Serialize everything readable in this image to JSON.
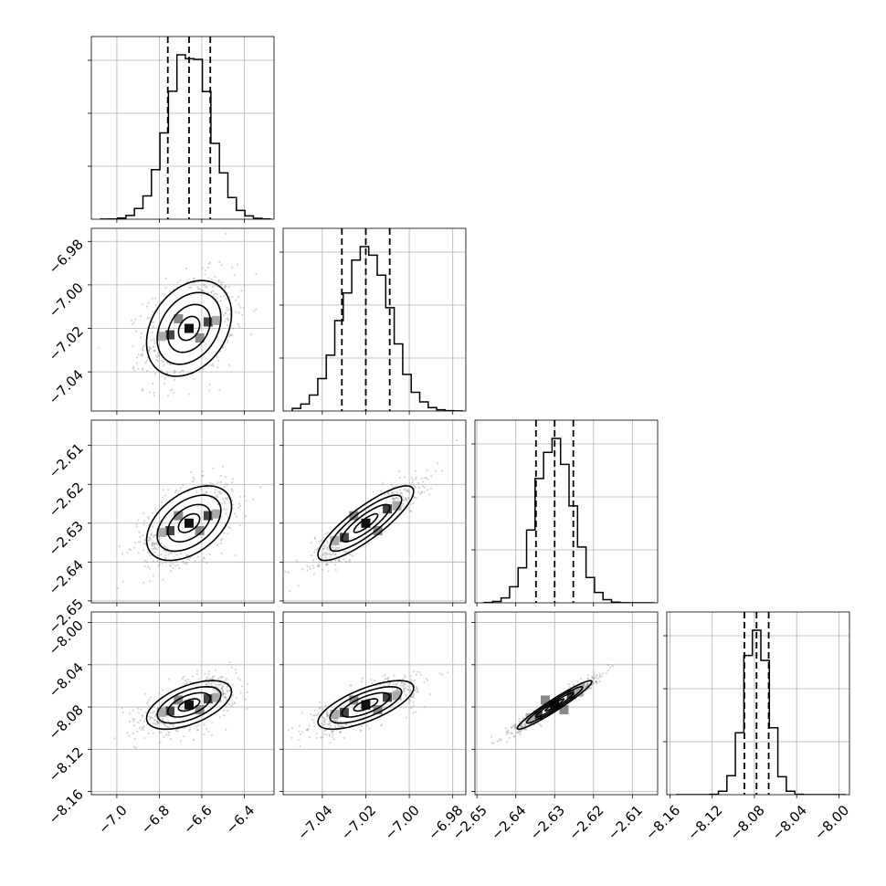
{
  "chart_data": {
    "type": "corner",
    "grid": true,
    "params": [
      {
        "mean": -6.66,
        "sd": 0.1,
        "q16": -6.76,
        "q50": -6.66,
        "q84": -6.56,
        "range": [
          -7.12,
          -6.26
        ],
        "ticks": [
          -7.0,
          -6.8,
          -6.6,
          -6.4
        ],
        "tick_labels": [
          "−7.0",
          "−6.8",
          "−6.6",
          "−6.4"
        ]
      },
      {
        "mean": -7.02,
        "sd": 0.011,
        "q16": -7.031,
        "q50": -7.02,
        "q84": -7.009,
        "range": [
          -7.058,
          -6.974
        ],
        "ticks": [
          -7.04,
          -7.02,
          -7.0,
          -6.98
        ],
        "tick_labels": [
          "−7.04",
          "−7.02",
          "−7.00",
          "−6.98"
        ]
      },
      {
        "mean": -2.63,
        "sd": 0.0048,
        "q16": -2.6348,
        "q50": -2.63,
        "q84": -2.6252,
        "range": [
          -2.6505,
          -2.6035
        ],
        "ticks": [
          -2.65,
          -2.64,
          -2.63,
          -2.62,
          -2.61
        ],
        "tick_labels": [
          "−2.65",
          "−2.64",
          "−2.63",
          "−2.62",
          "−2.61"
        ]
      },
      {
        "mean": -8.078,
        "sd": 0.0115,
        "q16": -8.0895,
        "q50": -8.078,
        "q84": -8.0665,
        "range": [
          -8.163,
          -7.99
        ],
        "ticks": [
          -8.16,
          -8.12,
          -8.08,
          -8.04,
          -8.0
        ],
        "tick_labels": [
          "−8.16",
          "−8.12",
          "−8.08",
          "−8.04",
          "−8.00"
        ]
      }
    ],
    "correlations": [
      [
        1.0,
        0.3,
        0.45,
        0.55
      ],
      [
        0.3,
        1.0,
        0.85,
        0.7
      ],
      [
        0.45,
        0.85,
        1.0,
        0.96
      ],
      [
        0.55,
        0.7,
        0.96,
        1.0
      ]
    ],
    "hist_bins": 20,
    "contour_levels": [
      0.5,
      1.0,
      1.5,
      2.0
    ],
    "colors": {
      "scatter": "#888888",
      "line": "#000000",
      "grid": "#b0b0b0"
    }
  }
}
